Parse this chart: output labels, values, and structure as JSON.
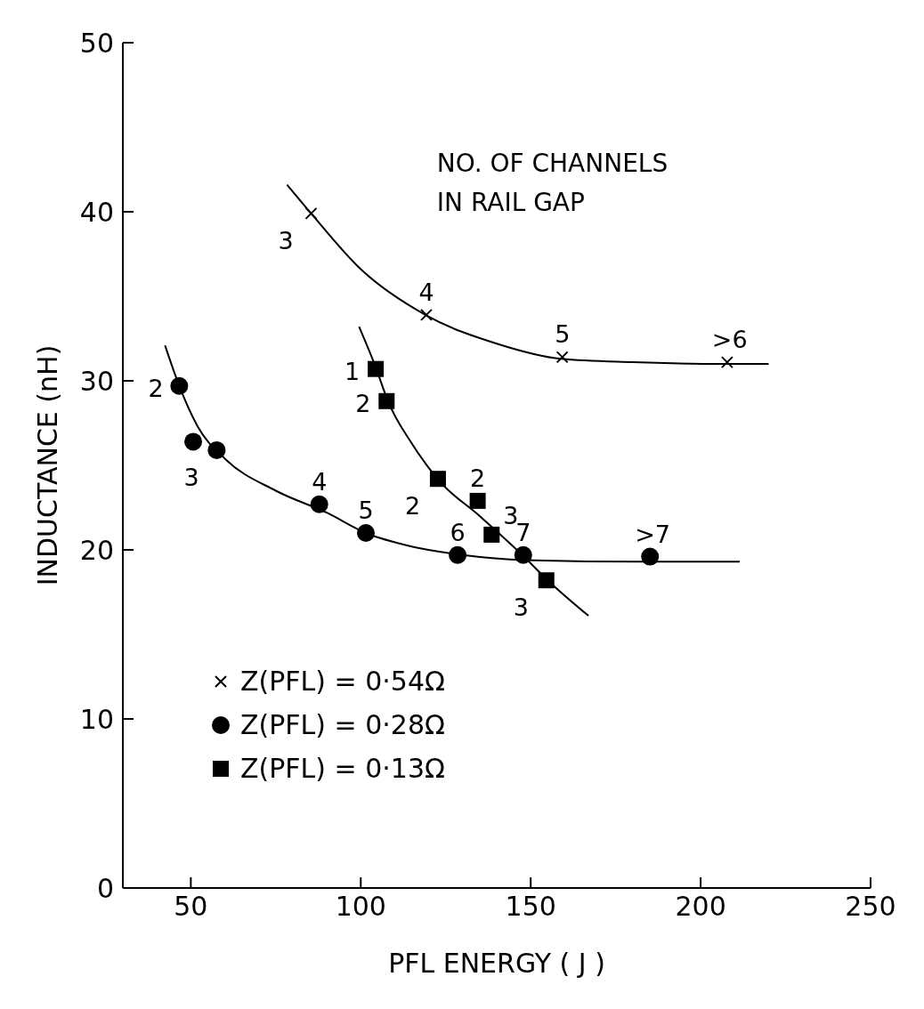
{
  "chart_data": {
    "type": "scatter",
    "xlabel": "PFL ENERGY ( J )",
    "ylabel": "INDUCTANCE  (nH)",
    "xlim": [
      30,
      250
    ],
    "xticks": [
      50,
      100,
      150,
      200,
      250
    ],
    "ylim": [
      0,
      50
    ],
    "yticks": [
      0,
      10,
      20,
      30,
      40,
      50
    ],
    "legend": "bottom left",
    "series": [
      {
        "name": "Z(PFL) = 0·54Ω",
        "marker": "cross",
        "color": "#000000",
        "x": [
          85.4,
          119.3,
          159.3,
          207.8
        ],
        "values": [
          39.9,
          33.9,
          31.4,
          31.1
        ]
      },
      {
        "name": "Z(PFL) = 0·28Ω",
        "marker": "circle",
        "color": "#000000",
        "x": [
          46.6,
          50.7,
          57.6,
          87.8,
          101.5,
          128.5,
          147.8,
          185.1
        ],
        "values": [
          29.7,
          26.4,
          25.9,
          22.7,
          21.0,
          19.7,
          19.7,
          19.6
        ]
      },
      {
        "name": "Z(PFL) = 0·13Ω",
        "marker": "square",
        "color": "#000000",
        "x": [
          104.4,
          107.6,
          122.7,
          134.4,
          138.5,
          154.6
        ],
        "values": [
          30.7,
          28.8,
          24.2,
          22.9,
          20.9,
          18.2
        ]
      },
      {
        "type": "line",
        "color": "#000000",
        "x": [
          78.3,
          85.4,
          100,
          119,
          140,
          159,
          180,
          208,
          220
        ],
        "values": [
          41.6,
          39.9,
          36.6,
          33.9,
          32.2,
          31.3,
          31.1,
          31.0,
          31.0
        ]
      },
      {
        "type": "line",
        "color": "#000000",
        "x": [
          42.4,
          46.6,
          52,
          60,
          75,
          90,
          101.5,
          115,
          130,
          148,
          185,
          211.5
        ],
        "values": [
          32.1,
          29.7,
          27.3,
          25.4,
          23.5,
          22.2,
          21.0,
          20.2,
          19.7,
          19.4,
          19.3,
          19.3
        ]
      },
      {
        "type": "line",
        "color": "#000000",
        "x": [
          99.5,
          104.4,
          108,
          115,
          123,
          135,
          147,
          155,
          167
        ],
        "values": [
          33.2,
          30.8,
          28.8,
          26.3,
          24.1,
          22.0,
          19.8,
          18.2,
          16.1
        ]
      }
    ],
    "annotations": [
      "NO. OF CHANNELS\nIN RAIL GAP",
      {
        "text": "3",
        "x": 85.4,
        "y": 39.9
      },
      {
        "text": "4",
        "x": 119.3,
        "y": 33.9
      },
      {
        "text": "5",
        "x": 159.3,
        "y": 31.4
      },
      {
        "text": ">6",
        "x": 207.8,
        "y": 31.1
      },
      {
        "text": "2",
        "x": 46.6,
        "y": 29.7
      },
      {
        "text": "3",
        "x": 57.6,
        "y": 25.9
      },
      {
        "text": "4",
        "x": 87.8,
        "y": 22.7
      },
      {
        "text": "5",
        "x": 101.5,
        "y": 21.0
      },
      {
        "text": "6",
        "x": 128.5,
        "y": 19.7
      },
      {
        "text": "7",
        "x": 147.8,
        "y": 19.7
      },
      {
        "text": ">7",
        "x": 185.1,
        "y": 19.6
      },
      {
        "text": "1",
        "x": 104.4,
        "y": 30.7
      },
      {
        "text": "2",
        "x": 107.6,
        "y": 28.8
      },
      {
        "text": "2",
        "x": 122.7,
        "y": 24.2
      },
      {
        "text": "2",
        "x": 134.4,
        "y": 22.9
      },
      {
        "text": "3",
        "x": 138.5,
        "y": 20.9
      },
      {
        "text": "3",
        "x": 154.6,
        "y": 18.2
      }
    ]
  }
}
